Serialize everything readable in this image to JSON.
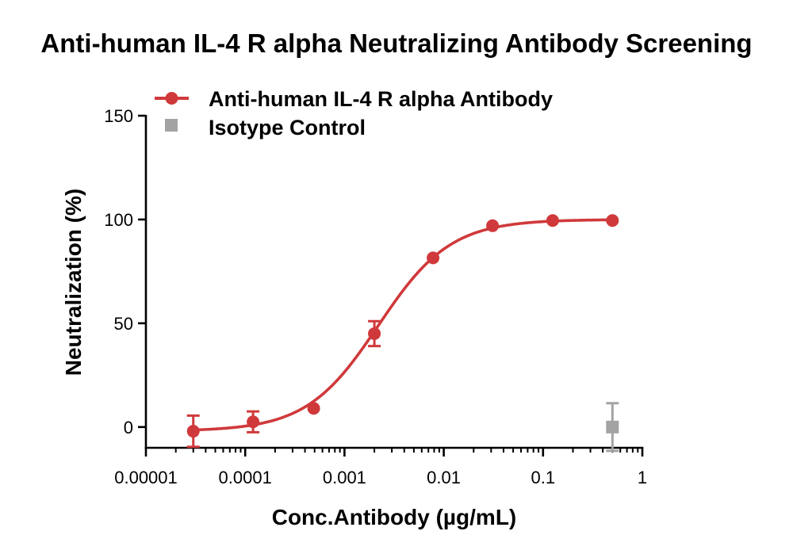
{
  "chart_data": {
    "type": "scatter",
    "title": "Anti-human IL-4 R alpha Neutralizing Antibody Screening",
    "xlabel": "Conc.Antibody (µg/mL)",
    "ylabel": "Neutralization (%)",
    "xscale": "log",
    "xlim": [
      1e-05,
      1
    ],
    "ylim": [
      -10,
      150
    ],
    "x_ticks": [
      1e-05,
      0.0001,
      0.001,
      0.01,
      0.1,
      1
    ],
    "x_tick_labels": [
      "0.00001",
      "0.0001",
      "0.001",
      "0.01",
      "0.1",
      "1"
    ],
    "y_ticks": [
      0,
      50,
      100,
      150
    ],
    "y_tick_labels": [
      "0",
      "50",
      "100",
      "150"
    ],
    "legend_position": "top-left",
    "series": [
      {
        "name": "Anti-human IL-4 R alpha Antibody",
        "color": "#d0393b",
        "marker": "circle",
        "fit": "sigmoid",
        "fit_params": {
          "bottom": -2,
          "top": 100,
          "ec50": 0.0022,
          "hill": 1.2
        },
        "x": [
          3e-05,
          0.00012,
          0.00049,
          0.002,
          0.0078,
          0.031,
          0.125,
          0.5
        ],
        "y": [
          -2,
          2.5,
          9,
          45,
          81.5,
          97,
          99.5,
          99.5
        ],
        "err": [
          7.5,
          5,
          0,
          6,
          0,
          0,
          0,
          0
        ]
      },
      {
        "name": "Isotype Control",
        "color": "#a3a3a3",
        "marker": "square",
        "x": [
          0.5
        ],
        "y": [
          0
        ],
        "err": [
          11.5
        ]
      }
    ]
  }
}
